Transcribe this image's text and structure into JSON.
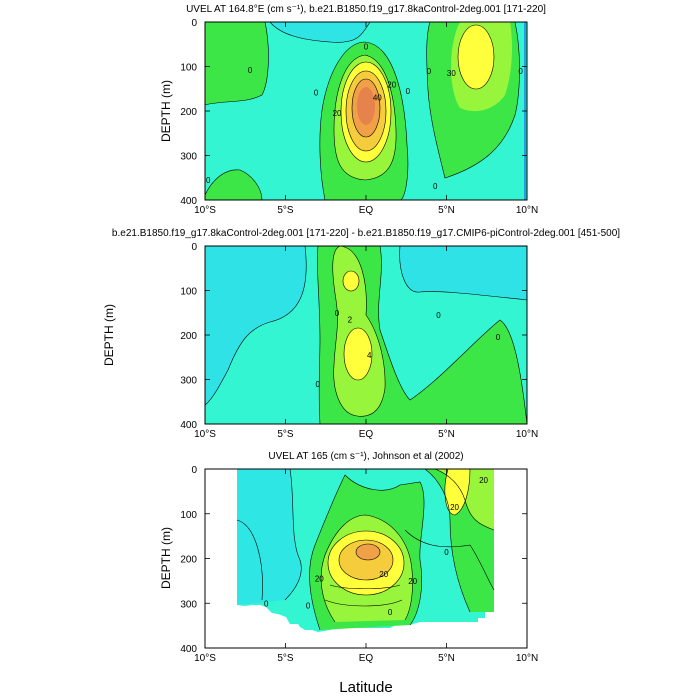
{
  "figure": {
    "x_axis_label": "Latitude",
    "y_axis_label": "DEPTH (m)"
  },
  "chart_data": [
    {
      "type": "contour",
      "title": "UVEL AT 164.8°E (cm s⁻¹), b.e21.B1850.f19_g17.8kaControl-2deg.001 [171-220]",
      "xlabel": "",
      "ylabel": "DEPTH (m)",
      "xlim": [
        -10,
        10
      ],
      "ylim": [
        400,
        0
      ],
      "x_ticks": [
        -10,
        -5,
        0,
        5,
        10
      ],
      "x_tick_labels": [
        "10°S",
        "5°S",
        "EQ",
        "5°N",
        "10°N"
      ],
      "y_ticks": [
        0,
        100,
        200,
        300,
        400
      ],
      "y_tick_labels": [
        "0",
        "100",
        "200",
        "300",
        "400"
      ],
      "contour_labels": [
        {
          "x": 0,
          "y": 55,
          "text": "0"
        },
        {
          "x": -7.2,
          "y": 108,
          "text": "0"
        },
        {
          "x": 1.6,
          "y": 140,
          "text": "20"
        },
        {
          "x": 0.7,
          "y": 170,
          "text": "40"
        },
        {
          "x": -1.8,
          "y": 205,
          "text": "20"
        },
        {
          "x": 2.6,
          "y": 155,
          "text": "0"
        },
        {
          "x": 5.3,
          "y": 115,
          "text": "30"
        },
        {
          "x": 3.9,
          "y": 110,
          "text": "0"
        },
        {
          "x": -3.1,
          "y": 158,
          "text": "0"
        },
        {
          "x": 9.6,
          "y": 110,
          "text": "0"
        },
        {
          "x": -9.8,
          "y": 355,
          "text": "0"
        },
        {
          "x": 4.3,
          "y": 368,
          "text": "0"
        }
      ]
    },
    {
      "type": "contour",
      "title": "b.e21.B1850.f19_g17.8kaControl-2deg.001 [171-220] - b.e21.B1850.f19_g17.CMIP6-piControl-2deg.001 [451-500]",
      "xlabel": "",
      "ylabel": "DEPTH (m)",
      "xlim": [
        -10,
        10
      ],
      "ylim": [
        400,
        0
      ],
      "x_ticks": [
        -10,
        -5,
        0,
        5,
        10
      ],
      "x_tick_labels": [
        "10°S",
        "5°S",
        "EQ",
        "5°N",
        "10°N"
      ],
      "y_ticks": [
        0,
        100,
        200,
        300,
        400
      ],
      "y_tick_labels": [
        "0",
        "100",
        "200",
        "300",
        "400"
      ],
      "contour_labels": [
        {
          "x": -1.8,
          "y": 150,
          "text": "0"
        },
        {
          "x": -1.0,
          "y": 165,
          "text": "2"
        },
        {
          "x": 0.2,
          "y": 245,
          "text": "4"
        },
        {
          "x": -3.0,
          "y": 310,
          "text": "0"
        },
        {
          "x": 4.5,
          "y": 155,
          "text": "0"
        },
        {
          "x": 8.2,
          "y": 205,
          "text": "0"
        }
      ]
    },
    {
      "type": "contour",
      "title": "UVEL AT 165 (cm s⁻¹), Johnson et al (2002)",
      "xlabel": "Latitude",
      "ylabel": "DEPTH (m)",
      "xlim": [
        -10,
        10
      ],
      "ylim": [
        400,
        0
      ],
      "x_ticks": [
        -10,
        -5,
        0,
        5,
        10
      ],
      "x_tick_labels": [
        "10°S",
        "5°S",
        "EQ",
        "5°N",
        "10°N"
      ],
      "y_ticks": [
        0,
        100,
        200,
        300,
        400
      ],
      "y_tick_labels": [
        "0",
        "100",
        "200",
        "300",
        "400"
      ],
      "contour_labels": [
        {
          "x": 7.3,
          "y": 25,
          "text": "20"
        },
        {
          "x": 5.5,
          "y": 85,
          "text": "20"
        },
        {
          "x": -2.9,
          "y": 245,
          "text": "20"
        },
        {
          "x": 1.1,
          "y": 235,
          "text": "20"
        },
        {
          "x": 2.9,
          "y": 250,
          "text": "20"
        },
        {
          "x": 5.0,
          "y": 185,
          "text": "0"
        },
        {
          "x": -3.6,
          "y": 305,
          "text": "0"
        },
        {
          "x": -6.2,
          "y": 300,
          "text": "0"
        },
        {
          "x": 1.5,
          "y": 320,
          "text": "0"
        }
      ]
    }
  ]
}
